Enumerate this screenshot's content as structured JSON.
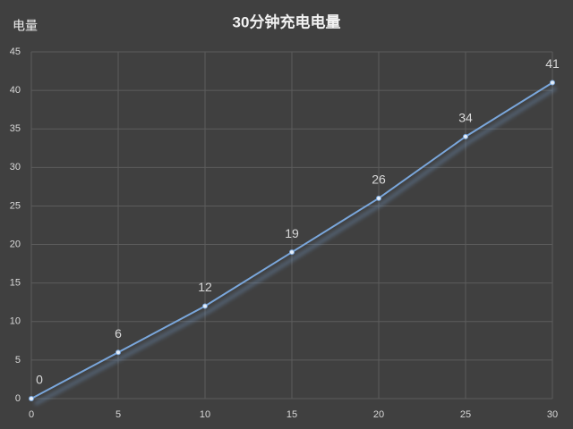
{
  "chart_data": {
    "type": "line",
    "title": "30分钟充电电量",
    "y_label": "电量",
    "x": [
      0,
      5,
      10,
      15,
      20,
      25,
      30
    ],
    "series": [
      {
        "name": "电量",
        "color": "#7aa7dc",
        "values": [
          0,
          6,
          12,
          19,
          26,
          34,
          41
        ]
      }
    ],
    "xlim": [
      0,
      30
    ],
    "xticks": [
      0,
      5,
      10,
      15,
      20,
      25,
      30
    ],
    "ylim": [
      0,
      45
    ],
    "yticks": [
      0,
      5,
      10,
      15,
      20,
      25,
      30,
      35,
      40,
      45
    ],
    "grid": true,
    "data_labels": true
  }
}
